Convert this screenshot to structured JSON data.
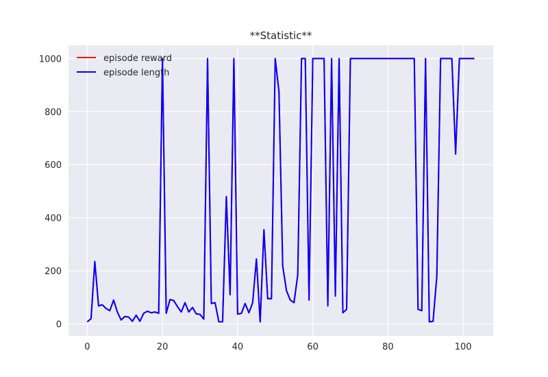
{
  "chart_data": {
    "type": "line",
    "title": "**Statistic**",
    "xlabel": "",
    "ylabel": "",
    "xlim": [
      -5,
      108
    ],
    "ylim": [
      -45,
      1050
    ],
    "xticks": [
      0,
      20,
      40,
      60,
      80,
      100
    ],
    "yticks": [
      0,
      200,
      400,
      600,
      800,
      1000
    ],
    "grid": true,
    "legend_position": "top-left",
    "series": [
      {
        "name": "episode reward",
        "color": "#ff0000",
        "x": [
          0,
          1,
          2,
          3,
          4,
          5,
          6,
          7,
          8,
          9,
          10,
          11,
          12,
          13,
          14,
          15,
          16,
          17,
          18,
          19,
          20,
          21,
          22,
          23,
          24,
          25,
          26,
          27,
          28,
          29,
          30,
          31,
          32,
          33,
          34,
          35,
          36,
          37,
          38,
          39,
          40,
          41,
          42,
          43,
          44,
          45,
          46,
          47,
          48,
          49,
          50,
          51,
          52,
          53,
          54,
          55,
          56,
          57,
          58,
          59,
          60,
          61,
          62,
          63,
          64,
          65,
          66,
          67,
          68,
          69,
          70,
          71,
          72,
          73,
          74,
          75,
          76,
          77,
          78,
          79,
          80,
          81,
          82,
          83,
          84,
          85,
          86,
          87,
          88,
          89,
          90,
          91,
          92,
          93,
          94,
          95,
          96,
          97,
          98,
          99,
          100,
          101,
          102,
          103
        ],
        "y": [
          8,
          20,
          235,
          68,
          72,
          58,
          50,
          90,
          45,
          15,
          28,
          26,
          10,
          33,
          10,
          40,
          48,
          42,
          45,
          40,
          1000,
          40,
          92,
          88,
          65,
          45,
          80,
          45,
          62,
          38,
          36,
          18,
          1000,
          77,
          80,
          8,
          8,
          480,
          110,
          1000,
          37,
          40,
          77,
          42,
          80,
          245,
          8,
          355,
          95,
          95,
          1000,
          875,
          218,
          125,
          90,
          80,
          185,
          1000,
          1000,
          90,
          1000,
          1000,
          1000,
          1000,
          68,
          1000,
          105,
          1000,
          42,
          55,
          1000,
          1000,
          1000,
          1000,
          1000,
          1000,
          1000,
          1000,
          1000,
          1000,
          1000,
          1000,
          1000,
          1000,
          1000,
          1000,
          1000,
          1000,
          55,
          50,
          1000,
          8,
          10,
          180,
          1000,
          1000,
          1000,
          1000,
          640,
          1000,
          1000,
          1000,
          1000,
          1000
        ]
      },
      {
        "name": "episode length",
        "color": "#0000ff",
        "x": [
          0,
          1,
          2,
          3,
          4,
          5,
          6,
          7,
          8,
          9,
          10,
          11,
          12,
          13,
          14,
          15,
          16,
          17,
          18,
          19,
          20,
          21,
          22,
          23,
          24,
          25,
          26,
          27,
          28,
          29,
          30,
          31,
          32,
          33,
          34,
          35,
          36,
          37,
          38,
          39,
          40,
          41,
          42,
          43,
          44,
          45,
          46,
          47,
          48,
          49,
          50,
          51,
          52,
          53,
          54,
          55,
          56,
          57,
          58,
          59,
          60,
          61,
          62,
          63,
          64,
          65,
          66,
          67,
          68,
          69,
          70,
          71,
          72,
          73,
          74,
          75,
          76,
          77,
          78,
          79,
          80,
          81,
          82,
          83,
          84,
          85,
          86,
          87,
          88,
          89,
          90,
          91,
          92,
          93,
          94,
          95,
          96,
          97,
          98,
          99,
          100,
          101,
          102,
          103
        ],
        "y": [
          8,
          20,
          235,
          68,
          72,
          58,
          50,
          90,
          45,
          15,
          28,
          26,
          10,
          33,
          10,
          40,
          48,
          42,
          45,
          40,
          1000,
          40,
          92,
          88,
          65,
          45,
          80,
          45,
          62,
          38,
          36,
          18,
          1000,
          77,
          80,
          8,
          8,
          480,
          110,
          1000,
          37,
          40,
          77,
          42,
          80,
          245,
          8,
          355,
          95,
          95,
          1000,
          875,
          218,
          125,
          90,
          80,
          185,
          1000,
          1000,
          90,
          1000,
          1000,
          1000,
          1000,
          68,
          1000,
          105,
          1000,
          42,
          55,
          1000,
          1000,
          1000,
          1000,
          1000,
          1000,
          1000,
          1000,
          1000,
          1000,
          1000,
          1000,
          1000,
          1000,
          1000,
          1000,
          1000,
          1000,
          55,
          50,
          1000,
          8,
          10,
          180,
          1000,
          1000,
          1000,
          1000,
          640,
          1000,
          1000,
          1000,
          1000,
          1000
        ]
      }
    ]
  },
  "colors": {
    "plot_background": "#eaeaf2",
    "grid": "#ffffff",
    "text": "#262626"
  }
}
